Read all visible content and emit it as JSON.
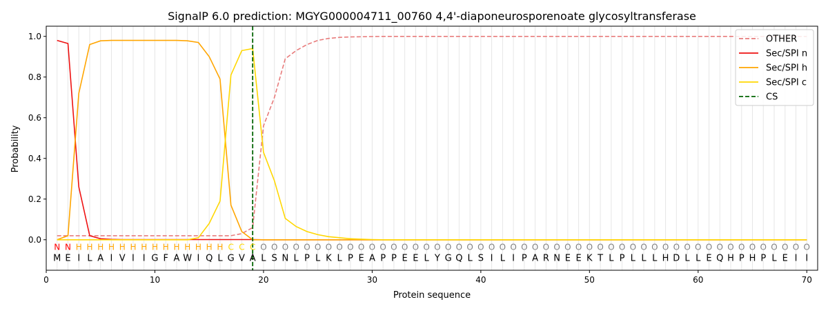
{
  "chart_data": {
    "type": "line",
    "title": "SignalP 6.0 prediction: MGYG000004711_00760 4,4'-diaponeurosporenoate glycosyltransferase",
    "xlabel": "Protein sequence",
    "ylabel": "Probability",
    "xlim": [
      0,
      71
    ],
    "ylim": [
      -0.15,
      1.05
    ],
    "xticks": [
      0,
      10,
      20,
      30,
      40,
      50,
      60,
      70
    ],
    "yticks": [
      0.0,
      0.2,
      0.4,
      0.6,
      0.8,
      1.0
    ],
    "grid": "vertical lines at each residue",
    "legend_position": "top-right",
    "cleavage_site": 19,
    "sequence": [
      "M",
      "E",
      "I",
      "L",
      "A",
      "I",
      "V",
      "I",
      "I",
      "G",
      "F",
      "A",
      "W",
      "I",
      "Q",
      "L",
      "G",
      "V",
      "A",
      "L",
      "S",
      "N",
      "L",
      "P",
      "L",
      "K",
      "L",
      "P",
      "E",
      "A",
      "P",
      "P",
      "E",
      "E",
      "L",
      "Y",
      "G",
      "Q",
      "L",
      "S",
      "I",
      "L",
      "I",
      "P",
      "A",
      "R",
      "N",
      "E",
      "E",
      "K",
      "T",
      "L",
      "P",
      "L",
      "L",
      "L",
      "H",
      "D",
      "L",
      "L",
      "E",
      "Q",
      "H",
      "P",
      "H",
      "P",
      "L",
      "E",
      "I",
      "I"
    ],
    "region_labels": [
      "N",
      "N",
      "H",
      "H",
      "H",
      "H",
      "H",
      "H",
      "H",
      "H",
      "H",
      "H",
      "H",
      "H",
      "H",
      "H",
      "C",
      "C",
      "C",
      "O",
      "O",
      "O",
      "O",
      "O",
      "O",
      "O",
      "O",
      "O",
      "O",
      "O",
      "O",
      "O",
      "O",
      "O",
      "O",
      "O",
      "O",
      "O",
      "O",
      "O",
      "O",
      "O",
      "O",
      "O",
      "O",
      "O",
      "O",
      "O",
      "O",
      "O",
      "O",
      "O",
      "O",
      "O",
      "O",
      "O",
      "O",
      "O",
      "O",
      "O",
      "O",
      "O",
      "O",
      "O",
      "O",
      "O",
      "O",
      "O",
      "O",
      "O"
    ],
    "region_colors": {
      "N": "#ff0000",
      "H": "#ffa500",
      "C": "#ffd700",
      "O": "#808080"
    },
    "series": [
      {
        "name": "OTHER",
        "color": "#e87b7b",
        "dash": "dashed",
        "values": [
          0.02,
          0.02,
          0.02,
          0.02,
          0.02,
          0.02,
          0.02,
          0.02,
          0.02,
          0.02,
          0.02,
          0.02,
          0.02,
          0.02,
          0.02,
          0.02,
          0.02,
          0.03,
          0.06,
          0.56,
          0.7,
          0.89,
          0.93,
          0.96,
          0.98,
          0.99,
          0.995,
          0.997,
          0.998,
          0.999,
          1,
          1,
          1,
          1,
          1,
          1,
          1,
          1,
          1,
          1,
          1,
          1,
          1,
          1,
          1,
          1,
          1,
          1,
          1,
          1,
          1,
          1,
          1,
          1,
          1,
          1,
          1,
          1,
          1,
          1,
          1,
          1,
          1,
          1,
          1,
          1,
          1,
          1,
          1,
          1
        ]
      },
      {
        "name": "Sec/SPI n",
        "color": "#ee1111",
        "dash": "solid",
        "values": [
          0.98,
          0.965,
          0.26,
          0.02,
          0.005,
          0.002,
          0.001,
          0.001,
          0.001,
          0.001,
          0.001,
          0.001,
          0.001,
          0.001,
          0.001,
          0.001,
          0.001,
          0.001,
          0.001,
          0,
          0,
          0,
          0,
          0,
          0,
          0,
          0,
          0,
          0,
          0,
          0,
          0,
          0,
          0,
          0,
          0,
          0,
          0,
          0,
          0,
          0,
          0,
          0,
          0,
          0,
          0,
          0,
          0,
          0,
          0,
          0,
          0,
          0,
          0,
          0,
          0,
          0,
          0,
          0,
          0,
          0,
          0,
          0,
          0,
          0,
          0,
          0,
          0,
          0,
          0
        ]
      },
      {
        "name": "Sec/SPI h",
        "color": "#ffa500",
        "dash": "solid",
        "values": [
          0.0,
          0.02,
          0.72,
          0.96,
          0.978,
          0.98,
          0.98,
          0.98,
          0.98,
          0.98,
          0.98,
          0.98,
          0.978,
          0.97,
          0.9,
          0.79,
          0.17,
          0.04,
          0.0,
          0,
          0,
          0,
          0,
          0,
          0,
          0,
          0,
          0,
          0,
          0,
          0,
          0,
          0,
          0,
          0,
          0,
          0,
          0,
          0,
          0,
          0,
          0,
          0,
          0,
          0,
          0,
          0,
          0,
          0,
          0,
          0,
          0,
          0,
          0,
          0,
          0,
          0,
          0,
          0,
          0,
          0,
          0,
          0,
          0,
          0,
          0,
          0,
          0,
          0,
          0
        ]
      },
      {
        "name": "Sec/SPI c",
        "color": "#ffd700",
        "dash": "solid",
        "values": [
          0.0,
          0.0,
          0.0,
          0.0,
          0.0,
          0.0,
          0.0,
          0.0,
          0.0,
          0.0,
          0.0,
          0.0,
          0.0,
          0.01,
          0.08,
          0.19,
          0.81,
          0.93,
          0.94,
          0.43,
          0.29,
          0.105,
          0.065,
          0.04,
          0.025,
          0.015,
          0.01,
          0.005,
          0.003,
          0.001,
          0,
          0,
          0,
          0,
          0,
          0,
          0,
          0,
          0,
          0,
          0,
          0,
          0,
          0,
          0,
          0,
          0,
          0,
          0,
          0,
          0,
          0,
          0,
          0,
          0,
          0,
          0,
          0,
          0,
          0,
          0,
          0,
          0,
          0,
          0,
          0,
          0,
          0,
          0,
          0
        ]
      },
      {
        "name": "CS",
        "color": "#006400",
        "dash": "dashed",
        "type": "vline",
        "x": 19
      }
    ]
  }
}
